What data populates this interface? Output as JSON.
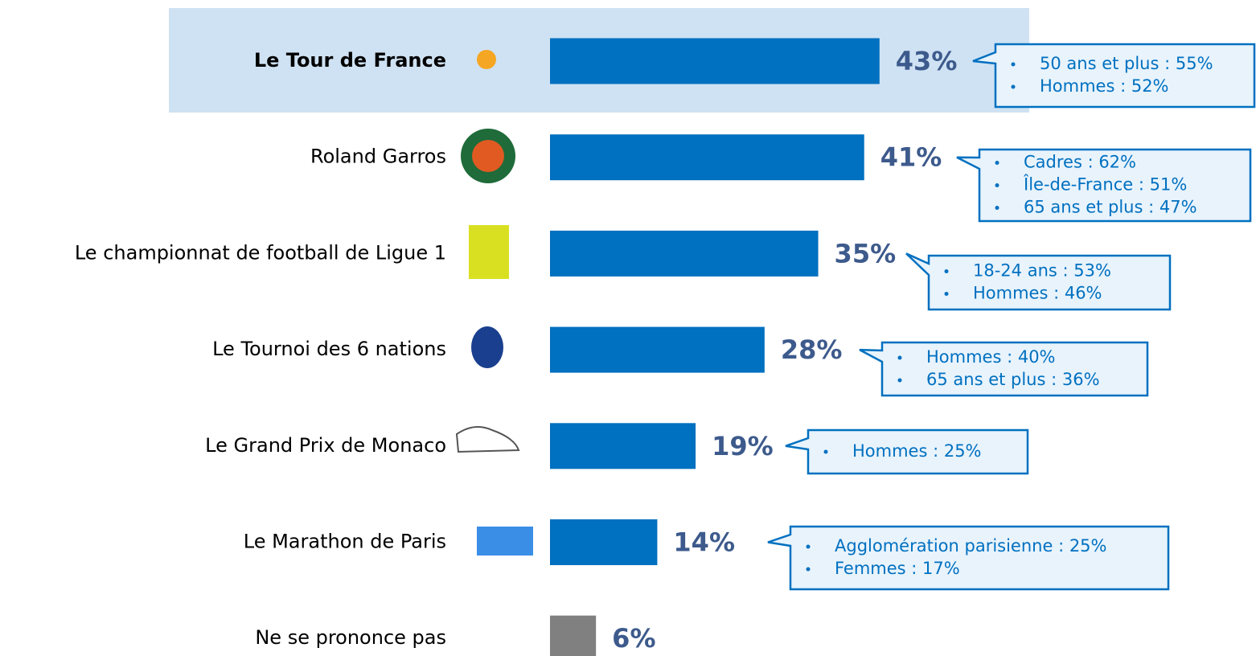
{
  "chart_data": {
    "type": "bar",
    "categories": [
      "Le Tour de France",
      "Roland Garros",
      "Le championnat de football de Ligue 1",
      "Le Tournoi des 6 nations",
      "Le Grand Prix de Monaco",
      "Le Marathon de Paris",
      "Ne se prononce pas"
    ],
    "values": [
      43,
      41,
      35,
      28,
      19,
      14,
      6
    ],
    "value_labels": [
      "43%",
      "41%",
      "35%",
      "28%",
      "19%",
      "14%",
      "6%"
    ],
    "colors": [
      "#0070c0",
      "#0070c0",
      "#0070c0",
      "#0070c0",
      "#0070c0",
      "#0070c0",
      "#808080"
    ],
    "highlight_color": "#cfe2f3",
    "annotations": [
      [
        "50 ans et plus : 55%",
        "Hommes : 52%"
      ],
      [
        "Cadres : 62%",
        "Île-de-France : 51%",
        "65 ans et plus : 47%"
      ],
      [
        "18-24 ans : 53%",
        "Hommes : 46%"
      ],
      [
        "Hommes : 40%",
        "65 ans et plus : 36%"
      ],
      [
        "Hommes : 25%"
      ],
      [
        "Agglomération parisienne : 25%",
        "Femmes : 17%"
      ]
    ]
  }
}
